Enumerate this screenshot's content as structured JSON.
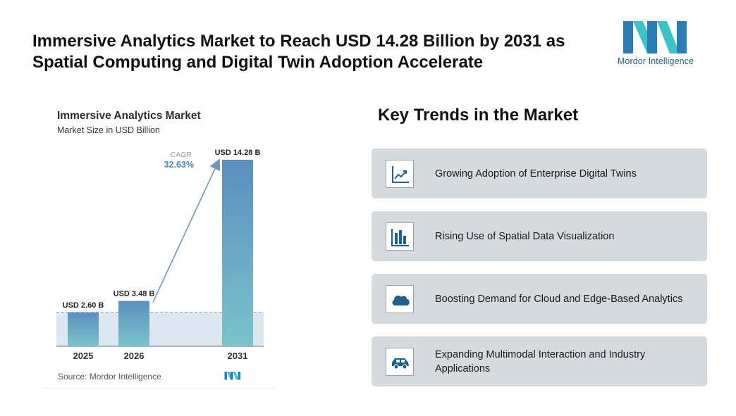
{
  "headline": "Immersive Analytics Market to Reach USD 14.28 Billion by 2031 as Spatial Computing and Digital Twin Adoption Accelerate",
  "brand": {
    "name": "Mordor Intelligence",
    "colors": {
      "teal": "#3cc3c8",
      "blue": "#2a7db5"
    }
  },
  "chart_data": {
    "type": "bar",
    "title": "Immersive Analytics Market",
    "subtitle": "Market Size in USD Billion",
    "categories": [
      "2025",
      "2026",
      "2031"
    ],
    "values": [
      2.6,
      3.48,
      14.28
    ],
    "data_labels": [
      "USD 2.60 B",
      "USD 3.48 B",
      "USD 14.28 B"
    ],
    "cagr_label": "CAGR",
    "cagr_value": "32.63%",
    "source": "Source: Mordor Intelligence",
    "grid": false,
    "colors": {
      "bar_top": "#5a8fbf",
      "bar_bottom": "#7cc3cc",
      "baseline_band": "#dde7f0",
      "arrow": "#6f97bd"
    }
  },
  "trends": {
    "title": "Key Trends in the Market",
    "items": [
      {
        "icon": "line-chart-icon",
        "label": "Growing Adoption of Enterprise Digital Twins"
      },
      {
        "icon": "bar-chart-icon",
        "label": "Rising Use of Spatial Data Visualization"
      },
      {
        "icon": "cloud-icon",
        "label": "Boosting Demand for Cloud and Edge-Based Analytics"
      },
      {
        "icon": "car-icon",
        "label": "Expanding Multimodal Interaction and Industry Applications"
      }
    ]
  }
}
